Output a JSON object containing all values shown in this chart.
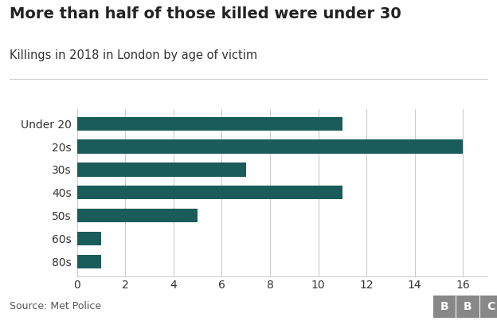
{
  "title": "More than half of those killed were under 30",
  "subtitle": "Killings in 2018 in London by age of victim",
  "source": "Source: Met Police",
  "categories": [
    "Under 20",
    "20s",
    "30s",
    "40s",
    "50s",
    "60s",
    "80s"
  ],
  "values": [
    11,
    16,
    7,
    11,
    5,
    1,
    1
  ],
  "bar_color": "#1a5c5a",
  "background_color": "#ffffff",
  "xlim": [
    0,
    17
  ],
  "xticks": [
    0,
    2,
    4,
    6,
    8,
    10,
    12,
    14,
    16
  ],
  "title_fontsize": 14,
  "subtitle_fontsize": 10.5,
  "tick_fontsize": 10,
  "source_fontsize": 9,
  "bbc_label": "BBC",
  "grid_color": "#cccccc",
  "bbc_bg_color": "#888888"
}
